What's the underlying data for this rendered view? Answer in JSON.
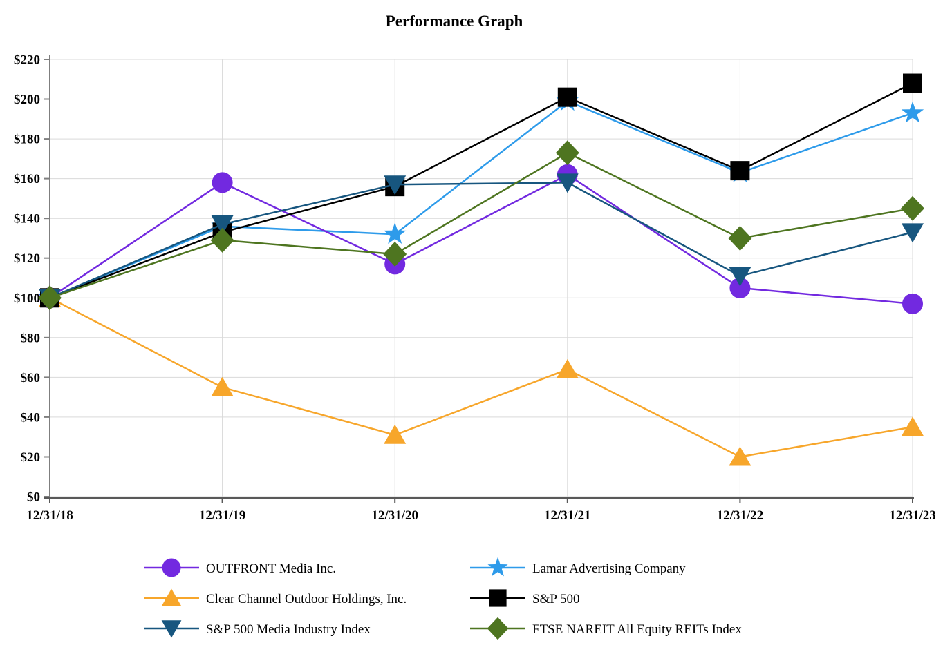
{
  "chart_data": {
    "type": "line",
    "title": "Performance Graph",
    "xlabel": "",
    "ylabel": "",
    "categories": [
      "12/31/18",
      "12/31/19",
      "12/31/20",
      "12/31/21",
      "12/31/22",
      "12/31/23"
    ],
    "ylim": [
      0,
      220
    ],
    "ytick_step": 20,
    "ytick_prefix": "$",
    "grid": true,
    "legend_position": "bottom-two-column",
    "colors": {
      "gridline": "#d9d9d9",
      "y_axis": "#7f7f7f",
      "x_axis": "#595959",
      "text": "#000000"
    },
    "series": [
      {
        "name": "Clear Channel Outdoor Holdings, Inc.",
        "marker": "triangle-up",
        "color": "#F7A62B",
        "values": [
          100,
          55,
          31,
          64,
          20,
          35
        ],
        "legend_col": 0,
        "legend_row": 1
      },
      {
        "name": "Lamar Advertising Company",
        "marker": "star",
        "color": "#2E9BEA",
        "values": [
          100,
          136,
          132,
          199,
          163,
          193
        ],
        "legend_col": 1,
        "legend_row": 0
      },
      {
        "name": "OUTFRONT Media Inc.",
        "marker": "circle",
        "color": "#7229E0",
        "values": [
          100,
          158,
          117,
          162,
          105,
          97
        ],
        "legend_col": 0,
        "legend_row": 0
      },
      {
        "name": "S&P 500",
        "marker": "square",
        "color": "#000000",
        "values": [
          100,
          133,
          156,
          201,
          164,
          208
        ],
        "legend_col": 1,
        "legend_row": 1
      },
      {
        "name": "S&P 500 Media Industry Index",
        "marker": "triangle-down",
        "color": "#17567F",
        "values": [
          100,
          137,
          157,
          158,
          111,
          133
        ],
        "legend_col": 0,
        "legend_row": 2
      },
      {
        "name": "FTSE NAREIT All Equity REITs Index",
        "marker": "diamond",
        "color": "#4E7520",
        "values": [
          100,
          129,
          122,
          173,
          130,
          145
        ],
        "legend_col": 1,
        "legend_row": 2
      }
    ]
  }
}
